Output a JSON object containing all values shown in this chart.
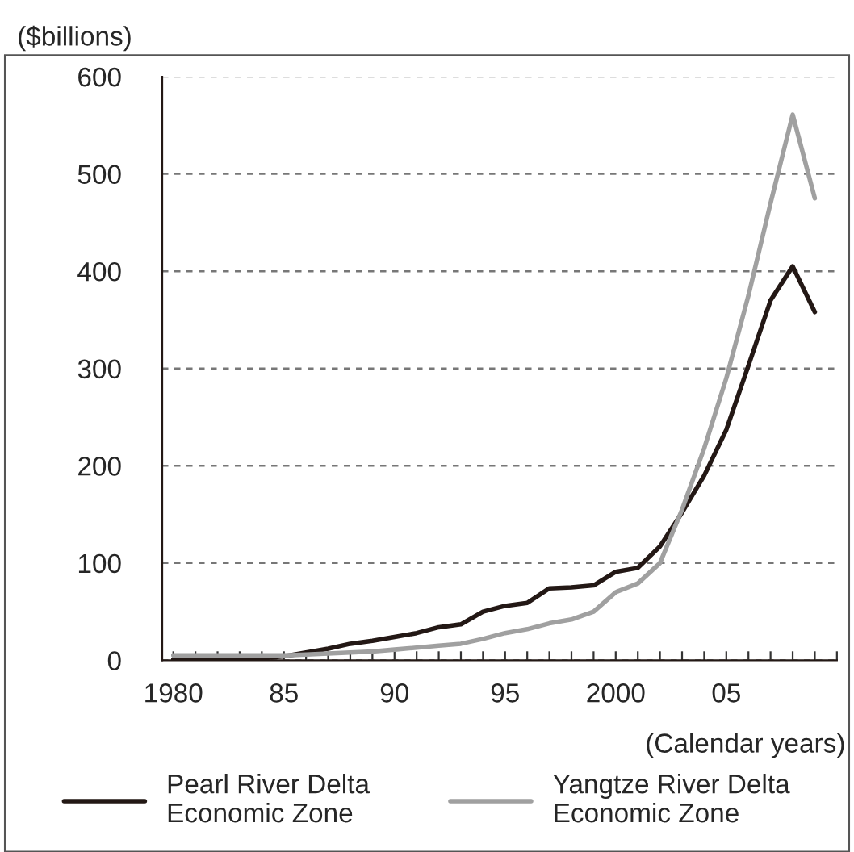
{
  "chart_data": {
    "type": "line",
    "ylabel": "($billions)",
    "xlabel": "(Calendar years)",
    "x": [
      1980,
      1981,
      1982,
      1983,
      1984,
      1985,
      1986,
      1987,
      1988,
      1989,
      1990,
      1991,
      1992,
      1993,
      1994,
      1995,
      1996,
      1997,
      1998,
      1999,
      2000,
      2001,
      2002,
      2003,
      2004,
      2005,
      2006,
      2007,
      2008,
      2009
    ],
    "series": [
      {
        "name": "Pearl River Delta\nEconomic Zone",
        "color": "#231815",
        "values": [
          1,
          1,
          1,
          2,
          2,
          4,
          8,
          12,
          17,
          20,
          24,
          28,
          34,
          37,
          50,
          56,
          59,
          74,
          75,
          77,
          91,
          95,
          117,
          152,
          190,
          237,
          303,
          370,
          405,
          358
        ]
      },
      {
        "name": "Yangtze River Delta\nEconomic Zone",
        "color": "#a0a0a0",
        "values": [
          5,
          5,
          5,
          5,
          5,
          5,
          6,
          7,
          8,
          9,
          11,
          13,
          15,
          17,
          22,
          28,
          32,
          38,
          42,
          50,
          70,
          79,
          100,
          155,
          218,
          290,
          375,
          470,
          561,
          475
        ]
      }
    ],
    "xlim": [
      1979.5,
      2010
    ],
    "xticks": [
      {
        "value": 1980,
        "label": "1980"
      },
      {
        "value": 1981,
        "label": null
      },
      {
        "value": 1982,
        "label": null
      },
      {
        "value": 1983,
        "label": null
      },
      {
        "value": 1984,
        "label": null
      },
      {
        "value": 1985,
        "label": "85"
      },
      {
        "value": 1986,
        "label": null
      },
      {
        "value": 1987,
        "label": null
      },
      {
        "value": 1988,
        "label": null
      },
      {
        "value": 1989,
        "label": null
      },
      {
        "value": 1990,
        "label": "90"
      },
      {
        "value": 1991,
        "label": null
      },
      {
        "value": 1992,
        "label": null
      },
      {
        "value": 1993,
        "label": null
      },
      {
        "value": 1994,
        "label": null
      },
      {
        "value": 1995,
        "label": "95"
      },
      {
        "value": 1996,
        "label": null
      },
      {
        "value": 1997,
        "label": null
      },
      {
        "value": 1998,
        "label": null
      },
      {
        "value": 1999,
        "label": null
      },
      {
        "value": 2000,
        "label": "2000"
      },
      {
        "value": 2001,
        "label": null
      },
      {
        "value": 2002,
        "label": null
      },
      {
        "value": 2003,
        "label": null
      },
      {
        "value": 2004,
        "label": null
      },
      {
        "value": 2005,
        "label": "05"
      },
      {
        "value": 2006,
        "label": null
      },
      {
        "value": 2007,
        "label": null
      },
      {
        "value": 2008,
        "label": null
      },
      {
        "value": 2009,
        "label": null
      },
      {
        "value": 2010,
        "label": null
      }
    ],
    "ylim": [
      0,
      600
    ],
    "yticks": [
      0,
      100,
      200,
      300,
      400,
      500,
      600
    ],
    "grid": "y",
    "legend": "bottom",
    "marker": "none",
    "line_style": "solid"
  }
}
